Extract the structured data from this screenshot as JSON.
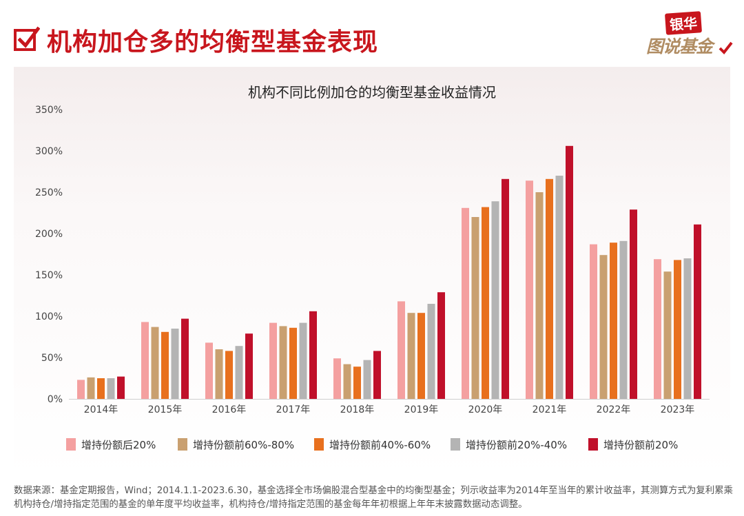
{
  "header": {
    "title": "机构加仓多的均衡型基金表现",
    "brand_top": "银华",
    "brand_bottom": "图说基金"
  },
  "footer": {
    "source_note": "数据来源：基金定期报告，Wind；2014.1.1-2023.6.30，基金选择全市场偏股混合型基金中的均衡型基金；列示收益率为2014年至当年的累计收益率，其测算方式为复利累乘机构持仓/增持指定范围的基金的单年度平均收益率，机构持仓/增持指定范围的基金每年年初根据上年年末披露数据动态调整。"
  },
  "chart_data": {
    "type": "bar",
    "title": "机构不同比例加仓的均衡型基金收益情况",
    "xlabel": "",
    "ylabel": "",
    "ylim": [
      0,
      350
    ],
    "yticks": [
      "0%",
      "50%",
      "100%",
      "150%",
      "200%",
      "250%",
      "300%",
      "350%"
    ],
    "categories": [
      "2014年",
      "2015年",
      "2016年",
      "2017年",
      "2018年",
      "2019年",
      "2020年",
      "2021年",
      "2022年",
      "2023年"
    ],
    "series": [
      {
        "name": "增持份额后20%",
        "color": "#f4a0a0",
        "values": [
          23,
          93,
          68,
          92,
          49,
          118,
          231,
          264,
          187,
          169
        ]
      },
      {
        "name": "增持份额前60%-80%",
        "color": "#c9a070",
        "values": [
          26,
          87,
          60,
          88,
          42,
          104,
          220,
          250,
          174,
          154
        ]
      },
      {
        "name": "增持份额前40%-60%",
        "color": "#e8701e",
        "values": [
          25,
          81,
          58,
          86,
          39,
          104,
          232,
          266,
          189,
          168
        ]
      },
      {
        "name": "增持份额前20%-40%",
        "color": "#b4b4b4",
        "values": [
          25,
          85,
          64,
          92,
          47,
          115,
          239,
          270,
          191,
          170
        ]
      },
      {
        "name": "增持份额前20%",
        "color": "#c0102a",
        "values": [
          27,
          97,
          79,
          106,
          58,
          129,
          266,
          306,
          229,
          211
        ]
      }
    ],
    "legend_position": "bottom-left",
    "grid": false
  }
}
